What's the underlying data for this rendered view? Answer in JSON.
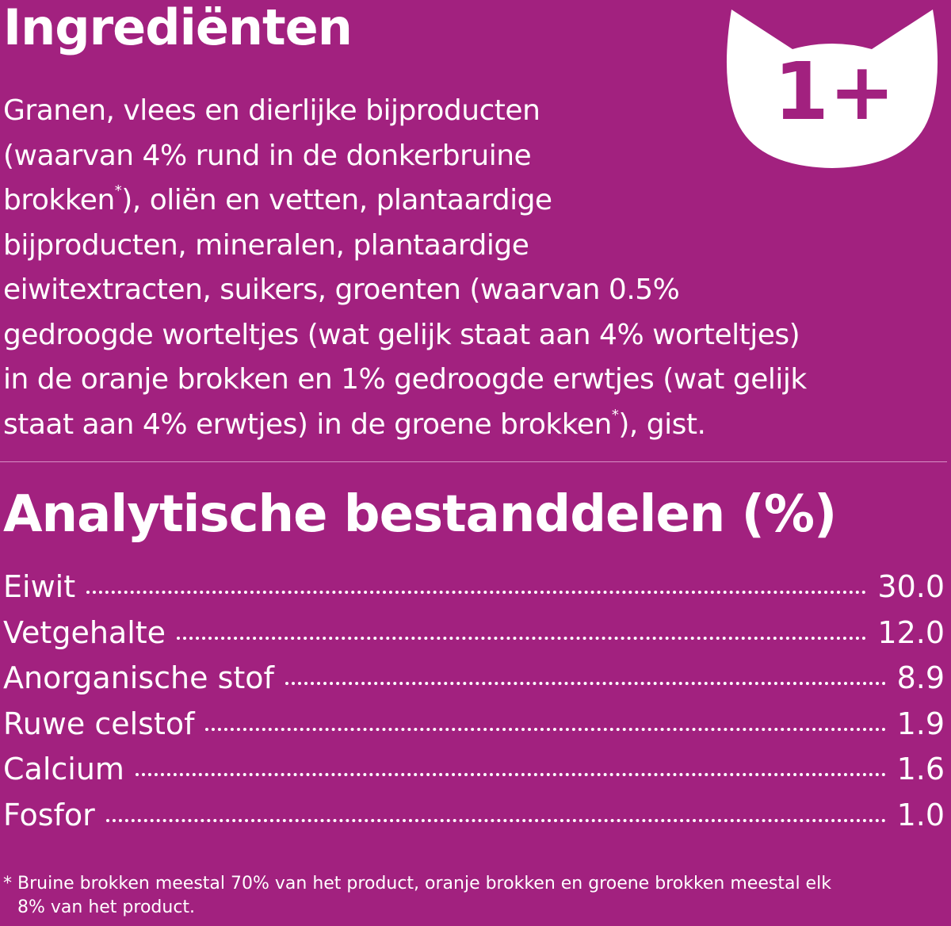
{
  "ingredients": {
    "title": "Ingrediënten",
    "lines": [
      "Granen, vlees en dierlijke bijproducten",
      "(waarvan 4% rund in de donkerbruine",
      {
        "before": "brokken",
        "sup": "*",
        "after": "), oliën en vetten, plantaardige"
      },
      "bijproducten, mineralen, plantaardige",
      "eiwitextracten, suikers, groenten (waarvan 0.5%",
      "gedroogde worteltjes (wat gelijk staat aan 4% worteltjes)",
      "in de oranje brokken en 1% gedroogde erwtjes (wat gelijk",
      {
        "before": "staat aan 4% erwtjes) in de groene brokken",
        "sup": "*",
        "after": "), gist."
      }
    ]
  },
  "badge": "1+",
  "analysis": {
    "title": "Analytische bestanddelen (%)",
    "rows": [
      {
        "label": "Eiwit",
        "value": "30.0"
      },
      {
        "label": "Vetgehalte",
        "value": "12.0"
      },
      {
        "label": "Anorganische stof",
        "value": "8.9"
      },
      {
        "label": "Ruwe celstof",
        "value": "1.9"
      },
      {
        "label": "Calcium",
        "value": "1.6"
      },
      {
        "label": "Fosfor",
        "value": "1.0"
      }
    ]
  },
  "footnote": {
    "marker": "*",
    "lines": [
      "Bruine brokken meestal 70% van het product, oranje brokken en groene brokken meestal elk",
      "8% van het product."
    ]
  }
}
